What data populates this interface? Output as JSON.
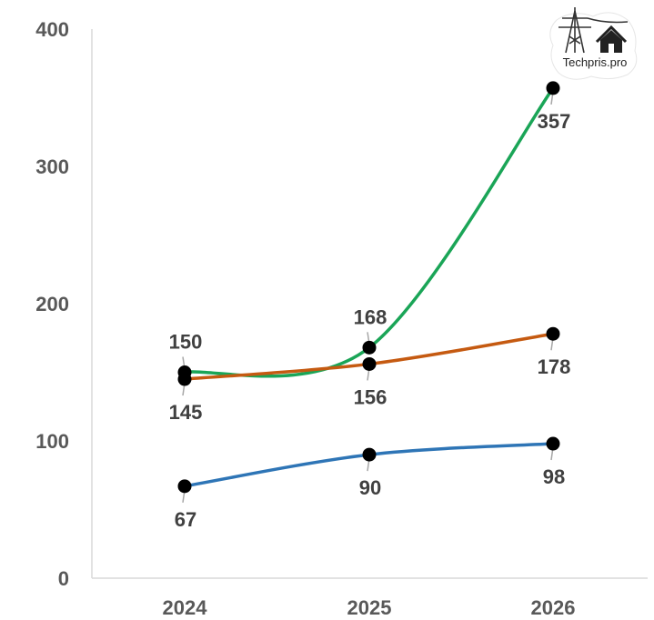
{
  "chart_data": {
    "type": "line",
    "title": "",
    "xlabel": "",
    "ylabel": "",
    "categories": [
      "2024",
      "2025",
      "2026"
    ],
    "ylim": [
      0,
      400
    ],
    "yticks": [
      0,
      100,
      200,
      300,
      400
    ],
    "grid": false,
    "legend": "none",
    "smooth": true,
    "series": [
      {
        "values": [
          150,
          168,
          357
        ],
        "color": "#1aa557"
      },
      {
        "values": [
          145,
          156,
          178
        ],
        "color": "#c55a11"
      },
      {
        "values": [
          67,
          90,
          98
        ],
        "color": "#2e75b6"
      }
    ],
    "label_placement": [
      [
        "above",
        "above",
        "below"
      ],
      [
        "below",
        "below",
        "below"
      ],
      [
        "below",
        "below",
        "below"
      ]
    ]
  },
  "logo": {
    "text": "Techpris.pro",
    "icons": [
      "power-tower-icon",
      "house-icon"
    ]
  }
}
